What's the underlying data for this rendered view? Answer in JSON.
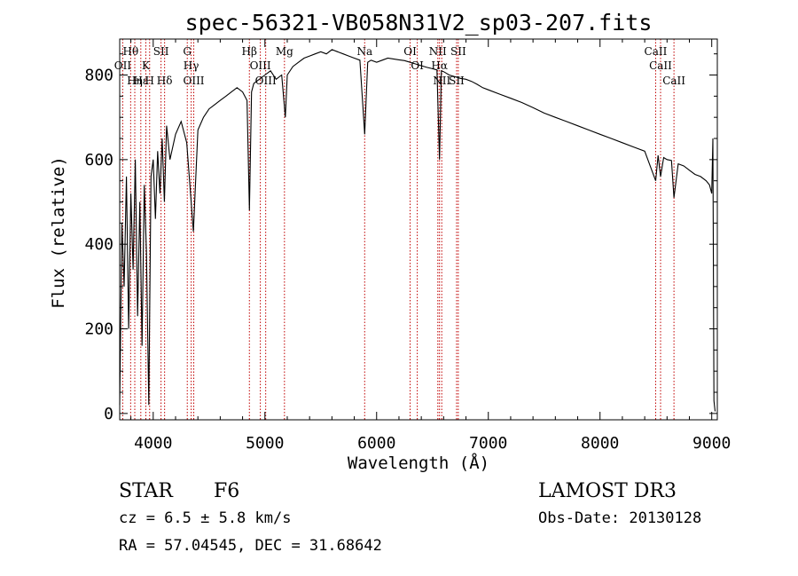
{
  "chart_data": {
    "type": "line",
    "title": "spec-56321-VB058N31V2_sp03-207.fits",
    "xlabel": "Wavelength (Å)",
    "ylabel": "Flux (relative)",
    "xlim": [
      3700,
      9050
    ],
    "ylim": [
      -15,
      885
    ],
    "x_ticks": [
      4000,
      5000,
      6000,
      7000,
      8000,
      9000
    ],
    "x_tick_labels": [
      "4000",
      "5000",
      "6000",
      "7000",
      "8000",
      "9000"
    ],
    "y_ticks": [
      0,
      200,
      400,
      600,
      800
    ],
    "y_tick_labels": [
      "0",
      "200",
      "400",
      "600",
      "800"
    ],
    "series": [
      {
        "name": "spectrum",
        "x": [
          3700,
          3720,
          3740,
          3760,
          3780,
          3800,
          3820,
          3840,
          3860,
          3880,
          3900,
          3920,
          3940,
          3960,
          3980,
          4000,
          4020,
          4040,
          4060,
          4080,
          4100,
          4120,
          4150,
          4200,
          4250,
          4300,
          4340,
          4360,
          4400,
          4450,
          4500,
          4550,
          4600,
          4650,
          4700,
          4750,
          4800,
          4840,
          4861,
          4880,
          4900,
          4950,
          5000,
          5050,
          5100,
          5150,
          5183,
          5200,
          5250,
          5300,
          5350,
          5400,
          5450,
          5500,
          5550,
          5600,
          5650,
          5700,
          5750,
          5800,
          5850,
          5893,
          5920,
          5950,
          6000,
          6050,
          6100,
          6150,
          6200,
          6250,
          6300,
          6350,
          6400,
          6450,
          6500,
          6540,
          6563,
          6580,
          6600,
          6650,
          6700,
          6750,
          6800,
          6850,
          6900,
          6950,
          7000,
          7100,
          7200,
          7300,
          7400,
          7500,
          7600,
          7700,
          7800,
          7900,
          8000,
          8100,
          8200,
          8300,
          8400,
          8498,
          8520,
          8542,
          8570,
          8600,
          8640,
          8662,
          8700,
          8750,
          8800,
          8850,
          8900,
          8950,
          8980,
          9000,
          9010,
          9020,
          9030
        ],
        "values": [
          20,
          450,
          300,
          560,
          200,
          520,
          340,
          600,
          230,
          500,
          160,
          540,
          380,
          20,
          560,
          600,
          460,
          620,
          520,
          650,
          500,
          680,
          600,
          660,
          690,
          640,
          500,
          430,
          670,
          700,
          720,
          730,
          740,
          750,
          760,
          770,
          760,
          740,
          480,
          760,
          780,
          790,
          800,
          810,
          790,
          800,
          700,
          800,
          820,
          830,
          840,
          845,
          850,
          855,
          850,
          860,
          855,
          850,
          845,
          840,
          835,
          660,
          830,
          835,
          830,
          835,
          840,
          838,
          836,
          834,
          830,
          826,
          822,
          818,
          815,
          812,
          600,
          810,
          808,
          800,
          796,
          792,
          790,
          785,
          778,
          770,
          765,
          755,
          745,
          735,
          723,
          710,
          700,
          690,
          680,
          670,
          660,
          650,
          640,
          630,
          620,
          550,
          610,
          560,
          605,
          600,
          598,
          510,
          590,
          585,
          575,
          565,
          560,
          550,
          540,
          520,
          650,
          30,
          5
        ]
      }
    ],
    "lines": [
      {
        "name": "Hθ",
        "wavelength": 3798
      },
      {
        "name": "OII",
        "wavelength": 3727
      },
      {
        "name": "Hη",
        "wavelength": 3835
      },
      {
        "name": "Hε",
        "wavelength": 3889
      },
      {
        "name": "K",
        "wavelength": 3934
      },
      {
        "name": "H",
        "wavelength": 3968
      },
      {
        "name": "SII",
        "wavelength": 4070
      },
      {
        "name": "Hδ",
        "wavelength": 4102
      },
      {
        "name": "G",
        "wavelength": 4305
      },
      {
        "name": "Hγ",
        "wavelength": 4340
      },
      {
        "name": "OIII",
        "wavelength": 4363
      },
      {
        "name": "Hβ",
        "wavelength": 4861
      },
      {
        "name": "OIII",
        "wavelength": 4959
      },
      {
        "name": "OIII",
        "wavelength": 5007
      },
      {
        "name": "Mg",
        "wavelength": 5175
      },
      {
        "name": "Na",
        "wavelength": 5893
      },
      {
        "name": "OI",
        "wavelength": 6300
      },
      {
        "name": "OI",
        "wavelength": 6364
      },
      {
        "name": "NII",
        "wavelength": 6548
      },
      {
        "name": "Hα",
        "wavelength": 6563
      },
      {
        "name": "NII",
        "wavelength": 6583
      },
      {
        "name": "SII",
        "wavelength": 6716
      },
      {
        "name": "SII",
        "wavelength": 6731
      },
      {
        "name": "CaII",
        "wavelength": 8498
      },
      {
        "name": "CaII",
        "wavelength": 8542
      },
      {
        "name": "CaII",
        "wavelength": 8662
      }
    ],
    "line_color": "#c00000"
  },
  "info": {
    "class_label": "STAR",
    "subclass": "F6",
    "cz": "cz = 6.5 ± 5.8 km/s",
    "coords": "RA =  57.04545, DEC =  31.68642",
    "survey": "LAMOST DR3",
    "obs_date": "Obs-Date: 20130128"
  }
}
